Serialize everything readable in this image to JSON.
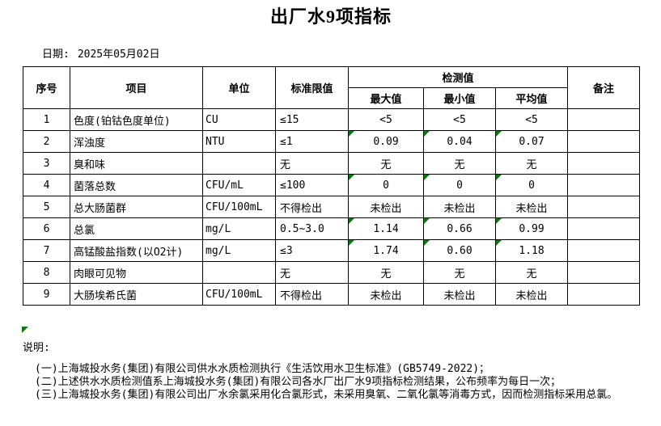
{
  "page": {
    "title": "出厂水9项指标"
  },
  "date": {
    "label": "日期:",
    "value": "2025年05月02日"
  },
  "colors": {
    "flag_green": "#008000"
  },
  "table": {
    "headers": {
      "no": "序号",
      "item": "项目",
      "unit": "单位",
      "limit": "标准限值",
      "detect": "检测值",
      "max": "最大值",
      "min": "最小值",
      "avg": "平均值",
      "remark": "备注"
    },
    "rows": [
      {
        "no": "1",
        "item": "色度(铂钴色度单位)",
        "unit": "CU",
        "limit": "≤15",
        "max": "<5",
        "min": "<5",
        "avg": "<5",
        "remark": "",
        "marked": false
      },
      {
        "no": "2",
        "item": "浑浊度",
        "unit": "NTU",
        "limit": "≤1",
        "max": "0.09",
        "min": "0.04",
        "avg": "0.07",
        "remark": "",
        "marked": true
      },
      {
        "no": "3",
        "item": "臭和味",
        "unit": "",
        "limit": "无",
        "max": "无",
        "min": "无",
        "avg": "无",
        "remark": "",
        "marked": false
      },
      {
        "no": "4",
        "item": "菌落总数",
        "unit": "CFU/mL",
        "limit": "≤100",
        "max": "0",
        "min": "0",
        "avg": "0",
        "remark": "",
        "marked": true
      },
      {
        "no": "5",
        "item": "总大肠菌群",
        "unit": "CFU/100mL",
        "limit": "不得检出",
        "max": "未检出",
        "min": "未检出",
        "avg": "未检出",
        "remark": "",
        "marked": false
      },
      {
        "no": "6",
        "item": "总氯",
        "unit": "mg/L",
        "limit": "0.5~3.0",
        "max": "1.14",
        "min": "0.66",
        "avg": "0.99",
        "remark": "",
        "marked": true
      },
      {
        "no": "7",
        "item": "高锰酸盐指数(以O2计)",
        "unit": "mg/L",
        "limit": "≤3",
        "max": "1.74",
        "min": "0.60",
        "avg": "1.18",
        "remark": "",
        "marked": true
      },
      {
        "no": "8",
        "item": "肉眼可见物",
        "unit": "",
        "limit": "无",
        "max": "无",
        "min": "无",
        "avg": "无",
        "remark": "",
        "marked": false
      },
      {
        "no": "9",
        "item": "大肠埃希氏菌",
        "unit": "CFU/100mL",
        "limit": "不得检出",
        "max": "未检出",
        "min": "未检出",
        "avg": "未检出",
        "remark": "",
        "marked": false
      }
    ]
  },
  "notes": {
    "label": "说明:",
    "items": [
      "(一)上海城投水务(集团)有限公司供水水质检测执行《生活饮用水卫生标准》(GB5749-2022)；",
      "(二)上述供水水质检测值系上海城投水务(集团)有限公司各水厂出厂水9项指标检测结果，公布频率为每日一次；",
      "(三)上海城投水务(集团)有限公司出厂水余氯采用化合氯形式，未采用臭氧、二氧化氯等消毒方式，因而检测指标采用总氯。"
    ]
  }
}
